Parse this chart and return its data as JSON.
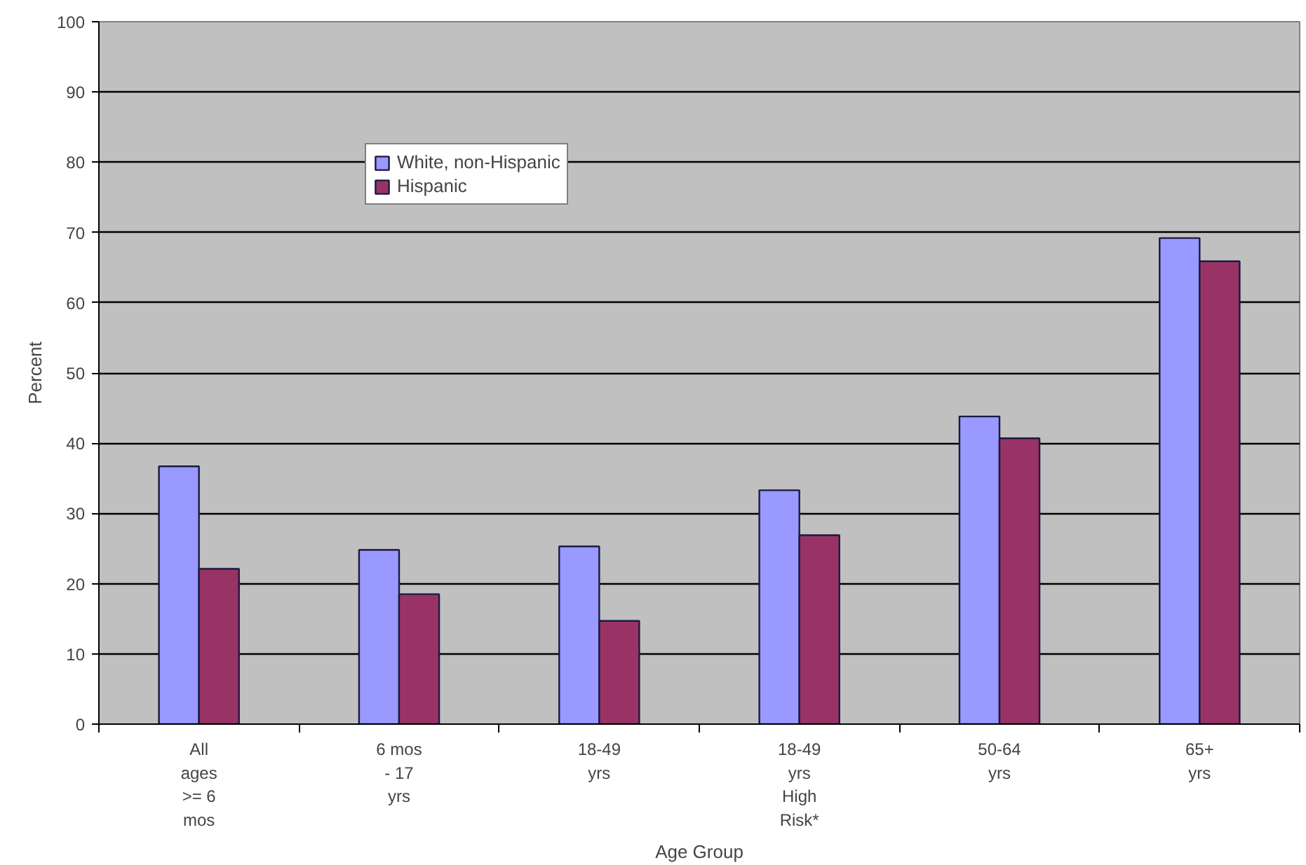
{
  "chart_data": {
    "type": "bar",
    "xlabel": "Age Group",
    "ylabel": "Percent",
    "categories": [
      "All\nages\n>= 6\nmos",
      "6 mos\n- 17\nyrs",
      "18-49\nyrs",
      "18-49\nyrs\nHigh\nRisk*",
      "50-64\nyrs",
      "65+\nyrs"
    ],
    "series": [
      {
        "name": "White, non-Hispanic",
        "color": "#9999ff",
        "values": [
          36.7,
          24.8,
          25.3,
          33.3,
          43.8,
          69.2
        ]
      },
      {
        "name": "Hispanic",
        "color": "#993366",
        "values": [
          22.1,
          18.5,
          14.7,
          26.9,
          40.7,
          65.9
        ]
      }
    ],
    "ylim": [
      0,
      100
    ],
    "yticks": [
      0,
      10,
      20,
      30,
      40,
      50,
      60,
      70,
      80,
      90,
      100
    ],
    "grid": "y",
    "legend": "top left"
  }
}
